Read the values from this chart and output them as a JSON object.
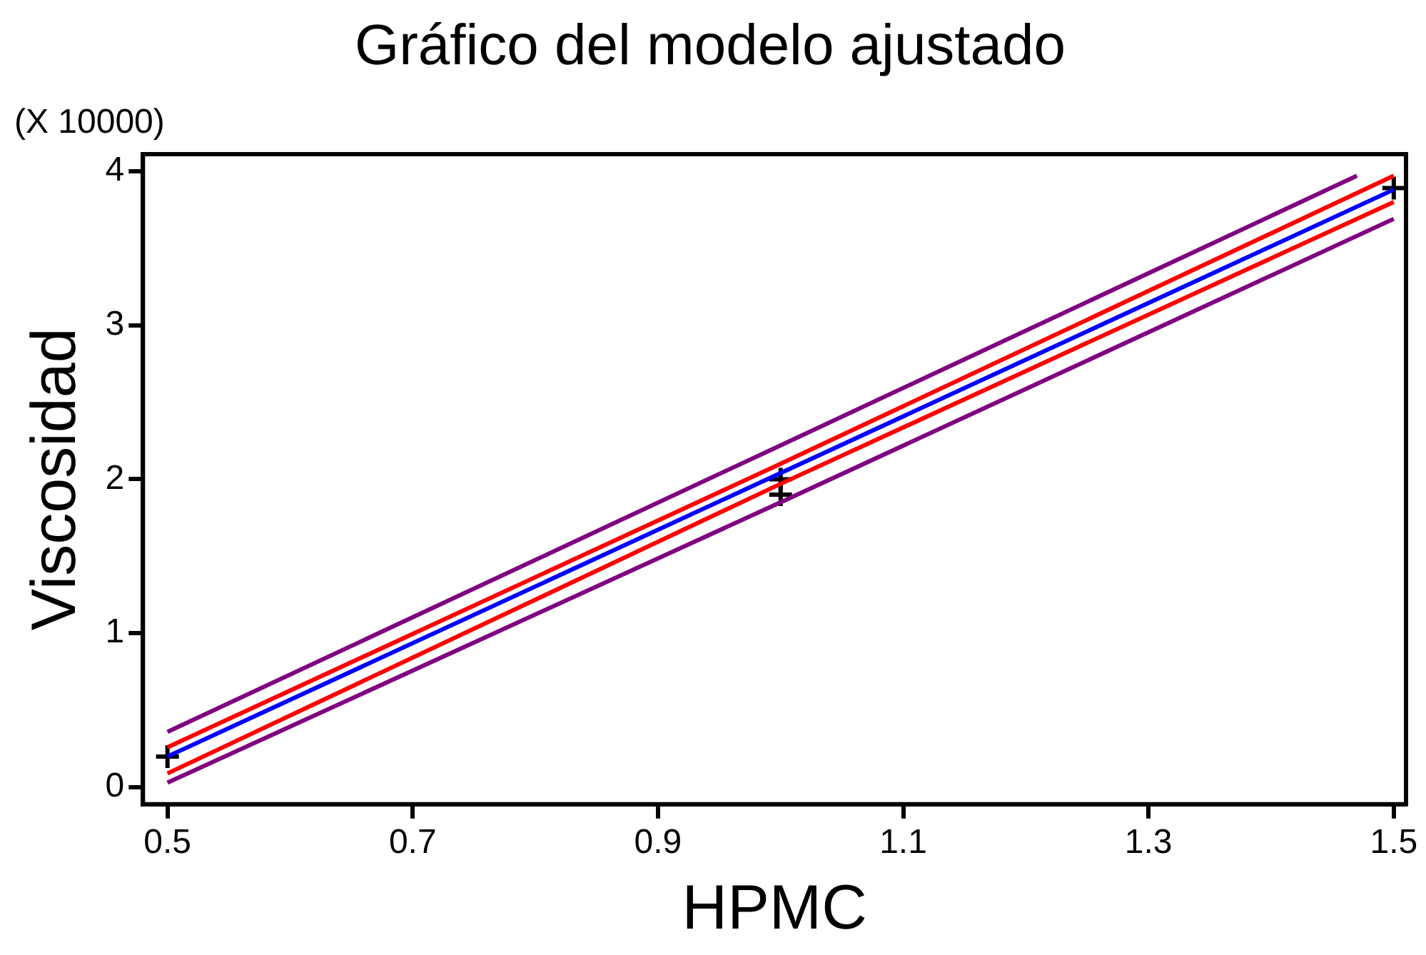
{
  "chart_data": {
    "type": "line",
    "title": "Gráfico del modelo ajustado",
    "xlabel": "HPMC",
    "ylabel": "Viscosidad",
    "annotations": [
      "(X 10000)"
    ],
    "xlim": [
      0.48,
      1.51
    ],
    "xticks": [
      0.5,
      0.7,
      0.9,
      1.1,
      1.3,
      1.5
    ],
    "ylim": [
      -0.11,
      4.11
    ],
    "yticks": [
      0,
      1,
      2,
      3,
      4
    ],
    "grid": false,
    "legend": false,
    "series": [
      {
        "color": "#800080",
        "x": [
          0.5,
          1.0,
          1.47
        ],
        "values": [
          0.36,
          2.22,
          3.97
        ]
      },
      {
        "color": "#ff0000",
        "x": [
          0.5,
          1.0,
          1.5
        ],
        "values": [
          0.26,
          2.1,
          3.97
        ]
      },
      {
        "color": "#0000ff",
        "x": [
          0.5,
          1.0,
          1.5
        ],
        "values": [
          0.2,
          2.04,
          3.88
        ]
      },
      {
        "color": "#ff0000",
        "x": [
          0.5,
          1.0,
          1.5
        ],
        "values": [
          0.09,
          1.97,
          3.8
        ]
      },
      {
        "color": "#800080",
        "x": [
          0.5,
          1.0,
          1.5
        ],
        "values": [
          0.03,
          1.85,
          3.69
        ]
      },
      {
        "type": "scatter",
        "marker": "cross",
        "color": "#000000",
        "x": [
          0.5,
          1.0,
          1.0,
          1.5
        ],
        "values": [
          0.2,
          2.0,
          1.9,
          3.89
        ]
      }
    ]
  }
}
